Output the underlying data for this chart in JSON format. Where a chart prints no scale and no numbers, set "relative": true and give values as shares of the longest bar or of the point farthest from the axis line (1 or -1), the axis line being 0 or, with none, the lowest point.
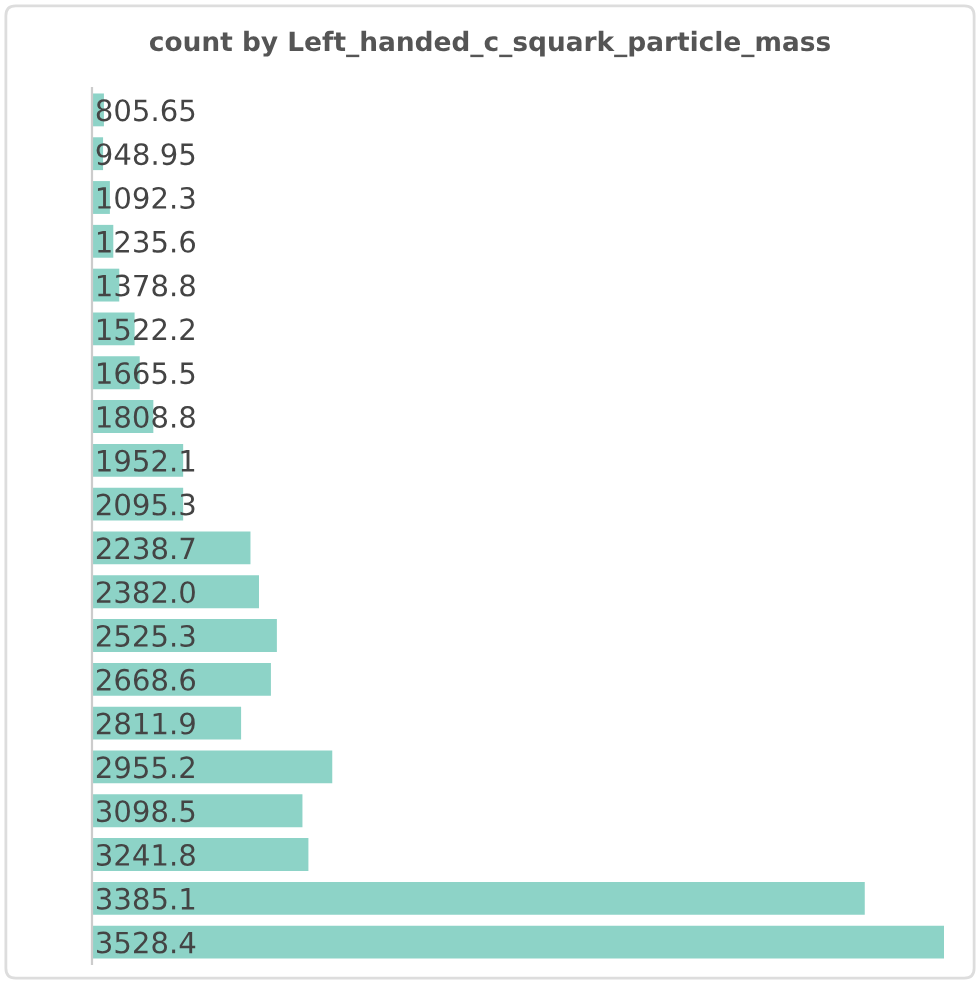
{
  "chart_data": {
    "type": "bar",
    "orientation": "horizontal",
    "relative": true,
    "title": "count by Left_handed_c_squark_particle_mass",
    "categories": [
      "805.65",
      "948.95",
      "1092.3",
      "1235.6",
      "1378.8",
      "1522.2",
      "1665.5",
      "1808.8",
      "1952.1",
      "2095.3",
      "2238.7",
      "2382.0",
      "2525.3",
      "2668.6",
      "2811.9",
      "2955.2",
      "3098.5",
      "3241.8",
      "3385.1",
      "3528.4"
    ],
    "values": [
      0.014,
      0.013,
      0.021,
      0.025,
      0.032,
      0.05,
      0.056,
      0.072,
      0.107,
      0.107,
      0.186,
      0.196,
      0.217,
      0.21,
      0.175,
      0.282,
      0.247,
      0.254,
      0.907,
      1
    ],
    "color": "#8dd3c7",
    "grid": false,
    "legend": false
  }
}
